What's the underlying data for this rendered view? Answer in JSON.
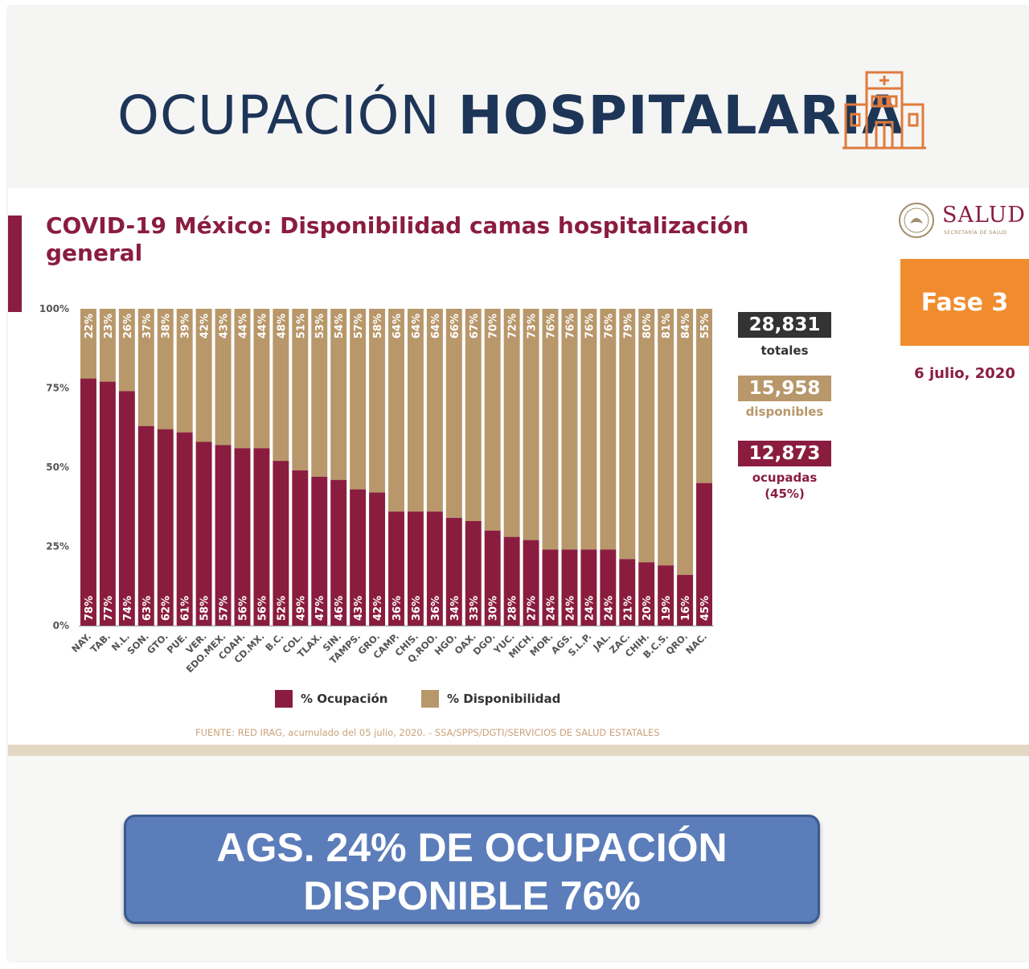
{
  "header": {
    "title_light": "OCUPACIÓN",
    "title_bold": "HOSPITALARIA",
    "icon": "hospital-building-icon"
  },
  "brand": {
    "name": "SALUD",
    "subtitle": "SECRETARÍA DE SALUD",
    "emblem_icon": "eagle-seal-icon",
    "colors": {
      "maroon": "#8a1d3f",
      "gold": "#b8976a",
      "navy": "#1d3557",
      "orange": "#f08c2e"
    }
  },
  "phase": {
    "label": "Fase 3"
  },
  "date": "6 julio, 2020",
  "stats": {
    "total_value": "28,831",
    "total_label": "totales",
    "available_value": "15,958",
    "available_label": "disponibles",
    "occupied_value": "12,873",
    "occupied_label": "ocupadas",
    "occupied_pct": "(45%)"
  },
  "chart_data": {
    "type": "bar",
    "stacked": true,
    "orientation": "vertical",
    "title": "COVID-19 México: Disponibilidad camas hospitalización general",
    "ylim": [
      0,
      100
    ],
    "yticks": [
      "0%",
      "25%",
      "50%",
      "75%",
      "100%"
    ],
    "categories": [
      "NAY.",
      "TAB.",
      "N.L.",
      "SON.",
      "GTO.",
      "PUE.",
      "VER.",
      "EDO.MEX.",
      "COAH.",
      "CD.MX.",
      "B.C.",
      "COL.",
      "TLAX.",
      "SIN.",
      "TAMPS.",
      "GRO.",
      "CAMP.",
      "CHIS.",
      "Q.ROO.",
      "HGO.",
      "OAX.",
      "DGO.",
      "YUC.",
      "MICH.",
      "MOR.",
      "AGS.",
      "S.L.P.",
      "JAL.",
      "ZAC.",
      "CHIH.",
      "B.C.S.",
      "QRO.",
      "NAC."
    ],
    "series": [
      {
        "name": "% Ocupación",
        "color": "#8a1d3f",
        "values": [
          78,
          77,
          74,
          63,
          62,
          61,
          58,
          57,
          56,
          56,
          52,
          49,
          47,
          46,
          43,
          42,
          36,
          36,
          36,
          34,
          33,
          30,
          28,
          27,
          24,
          24,
          24,
          24,
          21,
          20,
          19,
          16,
          45
        ]
      },
      {
        "name": "% Disponibilidad",
        "color": "#b8976a",
        "values": [
          22,
          23,
          26,
          37,
          38,
          39,
          42,
          43,
          44,
          44,
          48,
          51,
          53,
          54,
          57,
          58,
          64,
          64,
          64,
          66,
          67,
          70,
          72,
          73,
          76,
          76,
          76,
          76,
          79,
          80,
          81,
          84,
          55
        ]
      }
    ],
    "legend_position": "bottom",
    "source": "FUENTE: RED IRAG, acumulado del 05 julio, 2020. -  SSA/SPPS/DGTI/SERVICIOS DE SALUD ESTATALES"
  },
  "callout": {
    "line1": "AGS. 24% DE OCUPACIÓN",
    "line2": "DISPONIBLE 76%"
  }
}
